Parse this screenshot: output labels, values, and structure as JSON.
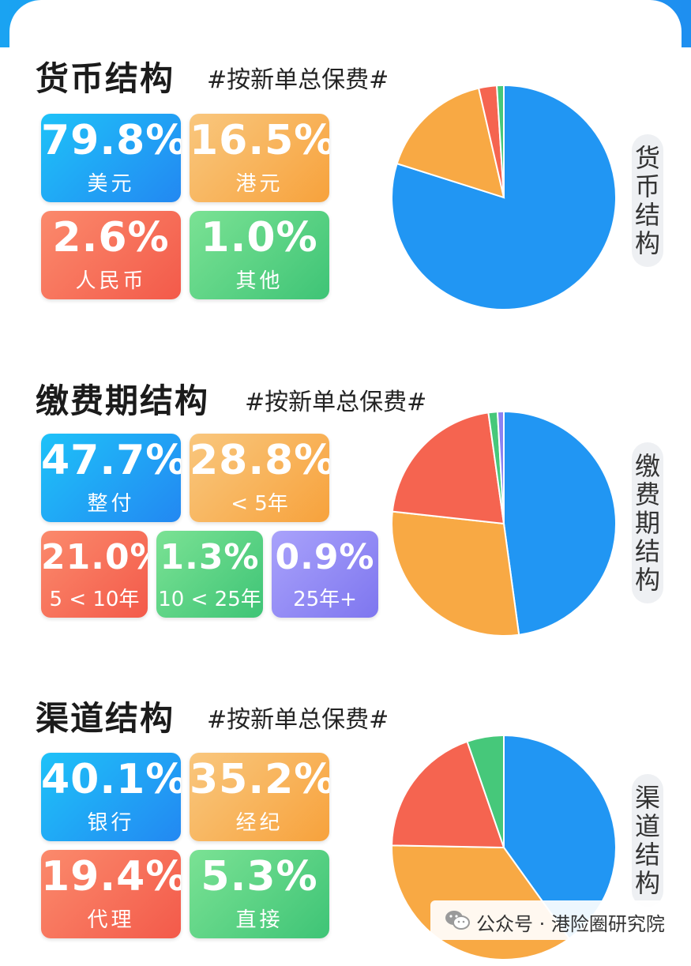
{
  "sections": [
    {
      "title": "货币结构",
      "subtitle": "#按新单总保费#",
      "side_label": [
        "货",
        "币",
        "结",
        "构"
      ],
      "cards": [
        {
          "value": "79.8%",
          "label": "美元"
        },
        {
          "value": "16.5%",
          "label": "港元"
        },
        {
          "value": "2.6%",
          "label": "人民币"
        },
        {
          "value": "1.0%",
          "label": "其他"
        }
      ]
    },
    {
      "title": "缴费期结构",
      "subtitle": "#按新单总保费#",
      "side_label": [
        "缴",
        "费",
        "期",
        "结",
        "构"
      ],
      "cards": [
        {
          "value": "47.7%",
          "label": "整付"
        },
        {
          "value": "28.8%",
          "label": "< 5年"
        },
        {
          "value": "21.0%",
          "label": "5 < 10年"
        },
        {
          "value": "1.3%",
          "label": "10 < 25年"
        },
        {
          "value": "0.9%",
          "label": "25年+"
        }
      ]
    },
    {
      "title": "渠道结构",
      "subtitle": "#按新单总保费#",
      "side_label": [
        "渠",
        "道",
        "结",
        "构"
      ],
      "cards": [
        {
          "value": "40.1%",
          "label": "银行"
        },
        {
          "value": "35.2%",
          "label": "经纪"
        },
        {
          "value": "19.4%",
          "label": "代理"
        },
        {
          "value": "5.3%",
          "label": "直接"
        }
      ]
    }
  ],
  "colors": {
    "blue": "#2196f3",
    "orange": "#f8a944",
    "red": "#f56450",
    "green": "#46c87a",
    "purple": "#8a82f2"
  },
  "chart_data": [
    {
      "type": "pie",
      "title": "货币结构",
      "categories": [
        "美元",
        "港元",
        "人民币",
        "其他"
      ],
      "values": [
        79.8,
        16.5,
        2.6,
        1.0
      ],
      "colors": [
        "#2196f3",
        "#f8a944",
        "#f56450",
        "#46c87a"
      ]
    },
    {
      "type": "pie",
      "title": "缴费期结构",
      "categories": [
        "整付",
        "< 5年",
        "5 < 10年",
        "10 < 25年",
        "25年+"
      ],
      "values": [
        47.7,
        28.8,
        21.0,
        1.3,
        0.9
      ],
      "colors": [
        "#2196f3",
        "#f8a944",
        "#f56450",
        "#46c87a",
        "#8a82f2"
      ]
    },
    {
      "type": "pie",
      "title": "渠道结构",
      "categories": [
        "银行",
        "经纪",
        "代理",
        "直接"
      ],
      "values": [
        40.1,
        35.2,
        19.4,
        5.3
      ],
      "colors": [
        "#2196f3",
        "#f8a944",
        "#f56450",
        "#46c87a"
      ]
    }
  ],
  "watermark": {
    "icon": "wechat-icon",
    "text": "公众号 · 港险圈研究院"
  }
}
